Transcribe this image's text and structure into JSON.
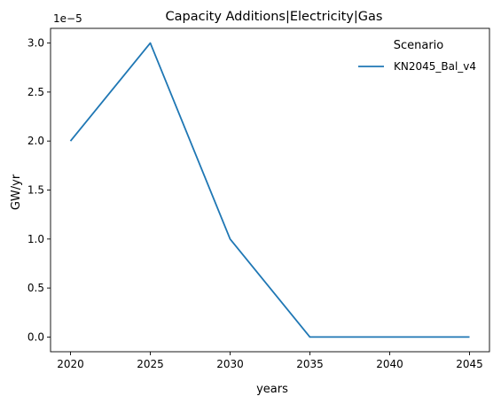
{
  "chart_data": {
    "type": "line",
    "title": "Capacity Additions|Electricity|Gas",
    "xlabel": "years",
    "ylabel": "GW/yr",
    "y_offset_label": "1e−5",
    "x": [
      2020,
      2025,
      2030,
      2035,
      2040,
      2045
    ],
    "xticks": [
      "2020",
      "2025",
      "2030",
      "2035",
      "2040",
      "2045"
    ],
    "yticks": [
      "0.0",
      "0.5",
      "1.0",
      "1.5",
      "2.0",
      "2.5",
      "3.0"
    ],
    "ylim": [
      -0.15,
      3.15
    ],
    "grid": false,
    "legend": {
      "title": "Scenario",
      "position": "top-right"
    },
    "series": [
      {
        "name": "KN2045_Bal_v4",
        "color": "#1f77b4",
        "values": [
          2.0,
          3.0,
          1.0,
          0.0,
          0.0,
          0.0
        ]
      }
    ]
  }
}
